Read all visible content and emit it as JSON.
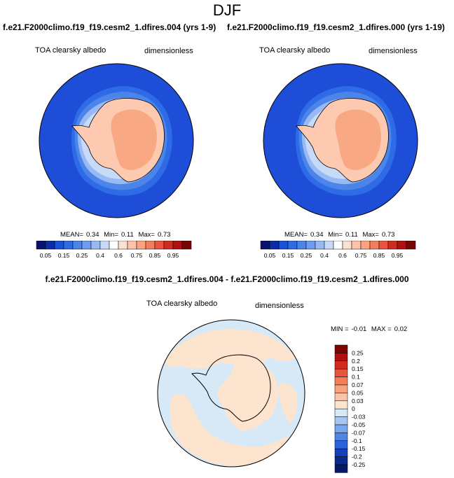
{
  "title": "DJF",
  "colors": {
    "ocean_deep": "#1e4ed8",
    "ice_cap": "#fdcab1",
    "ice_interior": "#f8a882",
    "diff_neutral": "#d7e8f7",
    "diff_positive": "#fde4cf",
    "coast": "#000000"
  },
  "panels": [
    {
      "case": "f.e21.F2000climo.f19_f19.cesm2_1.dfires.004 (yrs 1-9)",
      "variable": "TOA clearsky albedo",
      "units": "dimensionless",
      "stats": {
        "mean_label": "MEAN=",
        "mean": "0.34",
        "min_label": "Min=",
        "min": "0.11",
        "max_label": "Max=",
        "max": "0.73"
      }
    },
    {
      "case": "f.e21.F2000climo.f19_f19.cesm2_1.dfires.000 (yrs 1-19)",
      "variable": "TOA clearsky albedo",
      "units": "dimensionless",
      "stats": {
        "mean_label": "MEAN=",
        "mean": "0.34",
        "min_label": "Min=",
        "min": "0.11",
        "max_label": "Max=",
        "max": "0.73"
      }
    }
  ],
  "colorbar": {
    "colors": [
      "#08136e",
      "#0a2ea8",
      "#1850d8",
      "#2d6ce6",
      "#4b85ea",
      "#6f9cef",
      "#98b9f3",
      "#c7daf8",
      "#ffffff",
      "#fde1cf",
      "#fcc3a8",
      "#f9a37f",
      "#f47e5c",
      "#e8543c",
      "#d22a1f",
      "#b0110f",
      "#7a0505"
    ],
    "labels": [
      "0.05",
      "0.15",
      "0.25",
      "0.4",
      "0.6",
      "0.75",
      "0.85",
      "0.95"
    ]
  },
  "difference": {
    "title": "f.e21.F2000climo.f19_f19.cesm2_1.dfires.004 - f.e21.F2000climo.f19_f19.cesm2_1.dfires.000",
    "variable": "TOA clearsky albedo",
    "units": "dimensionless",
    "min_label": "MIN =",
    "min": "-0.01",
    "max_label": "MAX =",
    "max": "0.02",
    "colorbar": {
      "colors": [
        "#7a0505",
        "#b0110f",
        "#d22a1f",
        "#e8543c",
        "#f47e5c",
        "#f9a37f",
        "#fcc3a8",
        "#fde4cf",
        "#d7e8f7",
        "#a8c6f2",
        "#7aa6ec",
        "#4f86e6",
        "#2a63dc",
        "#1540b8",
        "#0a2a8c",
        "#061a64"
      ],
      "labels": [
        "0.25",
        "0.2",
        "0.15",
        "0.1",
        "0.07",
        "0.05",
        "0.03",
        "0",
        "-0.03",
        "-0.05",
        "-0.07",
        "-0.1",
        "-0.15",
        "-0.2",
        "-0.25"
      ]
    }
  }
}
